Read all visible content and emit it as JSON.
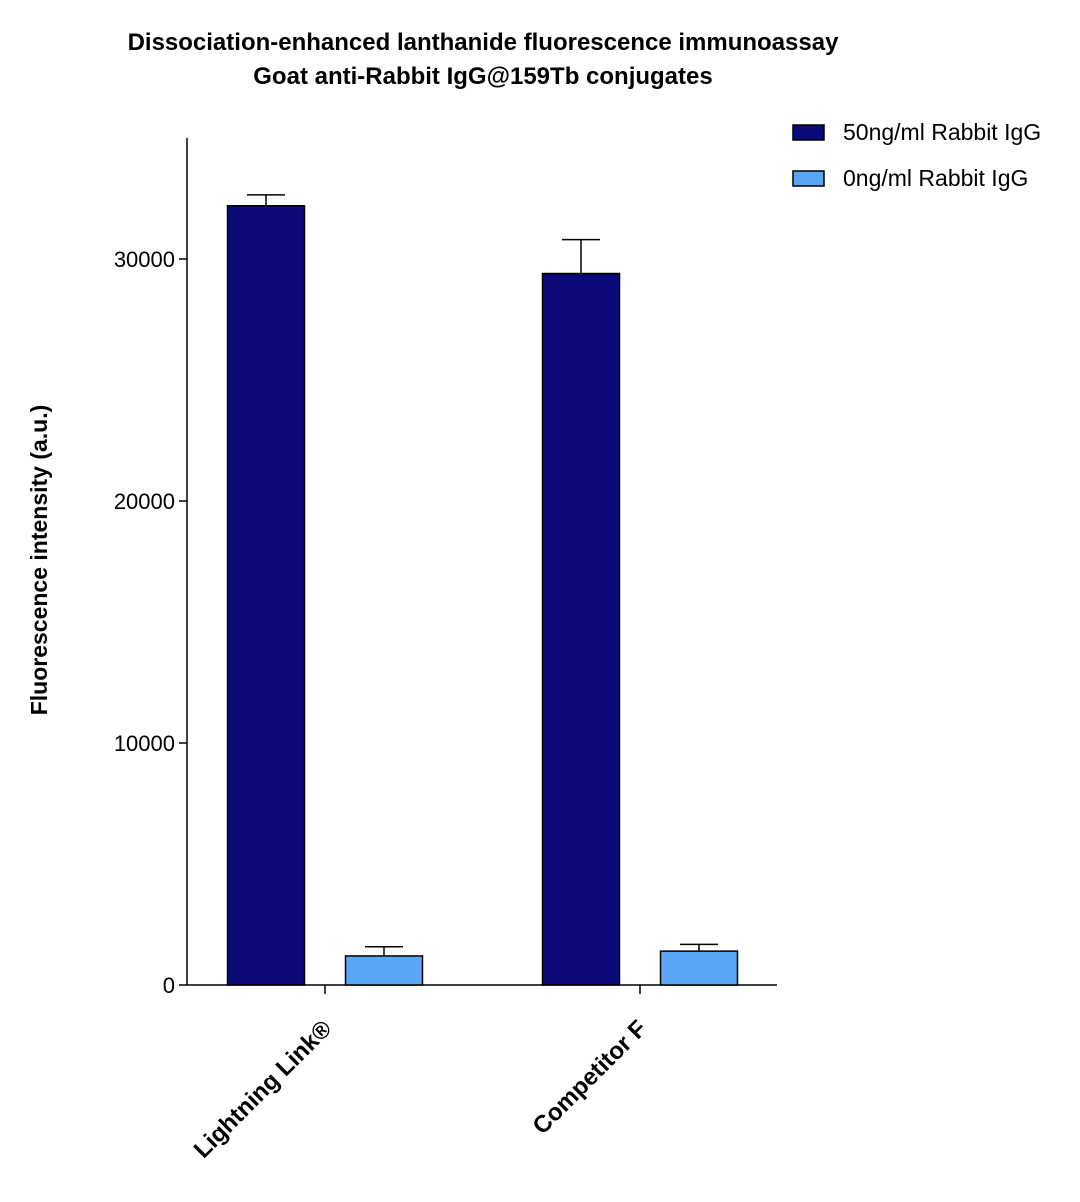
{
  "chart_data": {
    "type": "bar",
    "title": "Dissociation-enhanced lanthanide fluorescence immunoassay",
    "subtitle": "Goat anti-Rabbit IgG@159Tb conjugates",
    "xlabel": "",
    "ylabel": "Fluorescence intensity (a.u.)",
    "ylim": [
      0,
      35000
    ],
    "yticks": [
      0,
      10000,
      20000,
      30000
    ],
    "ytick_labels": [
      "0",
      "10000",
      "20000",
      "30000"
    ],
    "categories": [
      "Lightning Link®",
      "Competitor F"
    ],
    "series": [
      {
        "name": "50ng/ml Rabbit IgG",
        "values": [
          32200,
          29400
        ],
        "error_plus": [
          450,
          1400
        ],
        "color": "#0a0a78"
      },
      {
        "name": "0ng/ml Rabbit IgG",
        "values": [
          1200,
          1400
        ],
        "error_plus": [
          380,
          280
        ],
        "color": "#58a6f5"
      }
    ],
    "grid": false,
    "legend_position": "top-right"
  }
}
